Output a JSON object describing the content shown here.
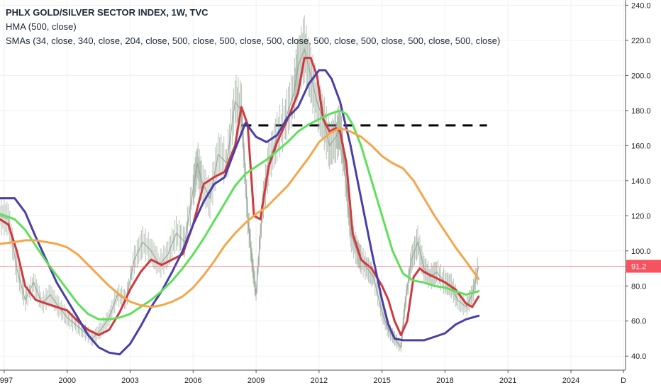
{
  "legend": {
    "title": "PHLX GOLD/SILVER SECTOR INDEX, 1W, TVC",
    "line2": "HMA (500, close)",
    "line3": "SMAs (34, close, 340, close, 204, close, 500, close, 500, close, 500, close, 500, close, 500, close, 500, close, 500, close)"
  },
  "chart_data": {
    "type": "line",
    "title": "PHLX GOLD/SILVER SECTOR INDEX, 1W, TVC",
    "xlabel": "",
    "ylabel": "",
    "xlim": [
      1996.8,
      2026.6
    ],
    "ylim": [
      32,
      243
    ],
    "y_ticks": [
      40,
      60,
      80,
      100,
      120,
      140,
      160,
      180,
      200,
      220,
      240
    ],
    "y_tick_labels": [
      "40.0",
      "60.0",
      "80.0",
      "100.0",
      "120.0",
      "140.0",
      "160.0",
      "180.0",
      "200.0",
      "220.0",
      "240.0"
    ],
    "x_ticks": [
      1997,
      2000,
      2003,
      2006,
      2009,
      2012,
      2015,
      2018,
      2021,
      2024,
      2026.5
    ],
    "x_tick_labels": [
      "1997",
      "2000",
      "2003",
      "2006",
      "2009",
      "2012",
      "2015",
      "2018",
      "2021",
      "2024",
      "D"
    ],
    "last_price": 91.2,
    "last_price_label": "91.2",
    "last_price_color": "#f7525f",
    "grid": true,
    "price_series": {
      "name": "",
      "color": "#8fa08f",
      "x": [
        1996.8,
        1997.2,
        1997.6,
        1998.0,
        1998.4,
        1998.8,
        1999.2,
        1999.6,
        2000.0,
        2000.4,
        2000.8,
        2001.2,
        2001.6,
        2002.0,
        2002.4,
        2002.8,
        2003.2,
        2003.6,
        2004.0,
        2004.4,
        2004.8,
        2005.2,
        2005.6,
        2006.0,
        2006.2,
        2006.4,
        2006.8,
        2007.2,
        2007.6,
        2008.0,
        2008.3,
        2008.6,
        2008.8,
        2009.0,
        2009.3,
        2009.6,
        2010.0,
        2010.4,
        2010.8,
        2011.0,
        2011.3,
        2011.6,
        2011.9,
        2012.2,
        2012.5,
        2012.8,
        2013.0,
        2013.2,
        2013.5,
        2013.8,
        2014.0,
        2014.3,
        2014.6,
        2015.0,
        2015.3,
        2015.6,
        2015.9,
        2016.1,
        2016.4,
        2016.7,
        2017.0,
        2017.3,
        2017.6,
        2018.0,
        2018.3,
        2018.6,
        2019.0,
        2019.3,
        2019.6
      ],
      "y": [
        120,
        118,
        90,
        72,
        82,
        70,
        75,
        68,
        62,
        58,
        54,
        50,
        55,
        62,
        75,
        72,
        95,
        105,
        100,
        92,
        98,
        110,
        105,
        135,
        150,
        140,
        130,
        155,
        150,
        185,
        180,
        120,
        95,
        75,
        125,
        150,
        165,
        175,
        190,
        205,
        215,
        200,
        185,
        175,
        160,
        165,
        170,
        150,
        110,
        100,
        95,
        90,
        85,
        65,
        55,
        50,
        45,
        70,
        95,
        105,
        90,
        85,
        88,
        82,
        80,
        72,
        68,
        75,
        91
      ]
    },
    "series": [
      {
        "name": "",
        "color": "#d0393e",
        "x": [
          1996.8,
          1997.2,
          1997.6,
          1998.0,
          1998.5,
          1999.0,
          1999.5,
          2000.0,
          2000.5,
          2001.0,
          2001.5,
          2002.0,
          2002.5,
          2003.0,
          2003.5,
          2004.0,
          2004.5,
          2005.0,
          2005.5,
          2006.0,
          2006.5,
          2007.0,
          2007.5,
          2008.0,
          2008.3,
          2008.6,
          2008.9,
          2009.2,
          2009.6,
          2010.0,
          2010.5,
          2011.0,
          2011.3,
          2011.6,
          2011.9,
          2012.2,
          2012.5,
          2012.8,
          2013.0,
          2013.3,
          2013.6,
          2014.0,
          2014.5,
          2015.0,
          2015.3,
          2015.6,
          2015.9,
          2016.2,
          2016.5,
          2016.8,
          2017.0,
          2017.5,
          2018.0,
          2018.5,
          2019.0,
          2019.3,
          2019.6
        ],
        "y": [
          118,
          115,
          100,
          80,
          72,
          70,
          68,
          66,
          60,
          55,
          52,
          55,
          65,
          78,
          88,
          95,
          92,
          95,
          98,
          115,
          138,
          142,
          145,
          160,
          182,
          172,
          120,
          118,
          148,
          162,
          175,
          190,
          210,
          210,
          200,
          175,
          168,
          170,
          168,
          150,
          110,
          95,
          90,
          80,
          72,
          60,
          52,
          60,
          85,
          90,
          88,
          85,
          82,
          78,
          70,
          68,
          74
        ]
      },
      {
        "name": "",
        "color": "#4a3fa8",
        "x": [
          1996.8,
          1997.5,
          1998.0,
          1998.5,
          1999.0,
          1999.5,
          2000.0,
          2000.5,
          2001.0,
          2001.5,
          2002.0,
          2002.5,
          2003.0,
          2003.5,
          2004.0,
          2004.5,
          2005.0,
          2005.5,
          2006.0,
          2006.5,
          2007.0,
          2007.5,
          2008.0,
          2008.5,
          2009.0,
          2009.5,
          2010.0,
          2010.5,
          2011.0,
          2011.5,
          2012.0,
          2012.3,
          2012.6,
          2013.0,
          2013.5,
          2014.0,
          2014.5,
          2015.0,
          2015.3,
          2015.6,
          2016.0,
          2016.5,
          2017.0,
          2017.5,
          2018.0,
          2018.5,
          2019.0,
          2019.6
        ],
        "y": [
          130,
          130,
          122,
          108,
          95,
          82,
          72,
          62,
          52,
          45,
          42,
          41,
          47,
          57,
          68,
          77,
          88,
          100,
          115,
          128,
          138,
          142,
          158,
          173,
          165,
          162,
          166,
          176,
          182,
          195,
          203,
          203,
          198,
          185,
          160,
          130,
          100,
          72,
          58,
          50,
          49,
          49,
          49,
          51,
          53,
          58,
          61,
          63
        ]
      },
      {
        "name": "",
        "color": "#5ee05a",
        "x": [
          1996.8,
          1997.5,
          1998.0,
          1998.5,
          1999.0,
          1999.5,
          2000.0,
          2000.5,
          2001.0,
          2001.5,
          2002.0,
          2002.5,
          2003.0,
          2003.5,
          2004.0,
          2004.5,
          2005.0,
          2005.5,
          2006.0,
          2006.5,
          2007.0,
          2007.5,
          2008.0,
          2008.5,
          2009.0,
          2009.5,
          2010.0,
          2010.5,
          2011.0,
          2011.5,
          2012.0,
          2012.5,
          2013.0,
          2013.3,
          2013.6,
          2014.0,
          2014.5,
          2015.0,
          2015.5,
          2016.0,
          2016.5,
          2017.0,
          2017.5,
          2018.0,
          2018.5,
          2019.0,
          2019.6
        ],
        "y": [
          121,
          118,
          112,
          103,
          94,
          86,
          78,
          70,
          64,
          61,
          61,
          62,
          64,
          68,
          72,
          77,
          83,
          90,
          98,
          107,
          117,
          127,
          137,
          144,
          148,
          152,
          157,
          162,
          168,
          172,
          175,
          178,
          180,
          178,
          172,
          160,
          140,
          120,
          100,
          87,
          83,
          82,
          80,
          79,
          77,
          75,
          77
        ]
      },
      {
        "name": "",
        "color": "#f5a64a",
        "x": [
          1996.8,
          1997.5,
          1998.0,
          1998.5,
          1999.0,
          1999.5,
          2000.0,
          2000.5,
          2001.0,
          2001.5,
          2002.0,
          2002.5,
          2003.0,
          2003.5,
          2004.0,
          2004.5,
          2005.0,
          2005.5,
          2006.0,
          2006.5,
          2007.0,
          2007.5,
          2008.0,
          2008.5,
          2009.0,
          2009.5,
          2010.0,
          2010.5,
          2011.0,
          2011.5,
          2012.0,
          2012.5,
          2013.0,
          2013.5,
          2014.0,
          2014.5,
          2015.0,
          2015.5,
          2016.0,
          2016.5,
          2017.0,
          2017.5,
          2018.0,
          2018.5,
          2019.0,
          2019.6
        ],
        "y": [
          104,
          105,
          106,
          106,
          105,
          104,
          102,
          98,
          92,
          86,
          80,
          75,
          71,
          69,
          68,
          69,
          71,
          74,
          79,
          86,
          94,
          103,
          110,
          116,
          121,
          125,
          131,
          137,
          145,
          153,
          162,
          167,
          170,
          168,
          165,
          160,
          154,
          150,
          147,
          140,
          130,
          120,
          111,
          102,
          94,
          84
        ]
      }
    ],
    "annotations": [
      {
        "type": "dashed_horizontal",
        "y": 171.5,
        "x_start": 2008.3,
        "x_end": 2020.0,
        "color": "#000000"
      }
    ]
  }
}
